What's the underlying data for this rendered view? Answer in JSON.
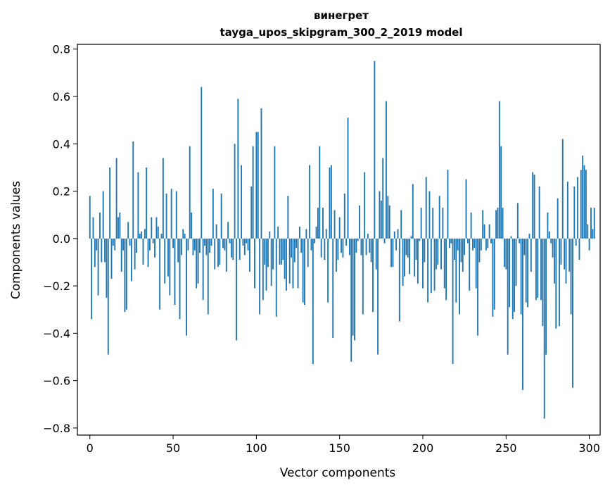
{
  "chart_data": {
    "type": "bar",
    "title_line1": "винегрет",
    "title_line2": "tayga_upos_skipgram_300_2_2019 model",
    "xlabel": "Vector components",
    "ylabel": "Components values",
    "xlim": [
      -7.5,
      306.5
    ],
    "ylim": [
      -0.83,
      0.82
    ],
    "xticks": [
      0,
      50,
      100,
      150,
      200,
      250,
      300
    ],
    "xtick_labels": [
      "0",
      "50",
      "100",
      "150",
      "200",
      "250",
      "300"
    ],
    "yticks": [
      -0.8,
      -0.6,
      -0.4,
      -0.2,
      0.0,
      0.2,
      0.4,
      0.6,
      0.8
    ],
    "ytick_labels": [
      "−0.8",
      "−0.6",
      "−0.4",
      "−0.2",
      "0.0",
      "0.2",
      "0.4",
      "0.6",
      "0.8"
    ],
    "bar_color": "#1f77b4",
    "grid": false,
    "values": [
      0.18,
      -0.34,
      0.09,
      -0.12,
      -0.05,
      -0.24,
      0.11,
      -0.1,
      0.2,
      -0.1,
      -0.25,
      -0.49,
      0.3,
      -0.17,
      -0.03,
      -0.05,
      0.34,
      0.09,
      0.11,
      -0.14,
      -0.05,
      -0.31,
      -0.3,
      0.07,
      -0.03,
      -0.18,
      0.41,
      -0.13,
      -0.06,
      0.28,
      0.02,
      0.03,
      -0.11,
      0.04,
      0.3,
      -0.12,
      -0.05,
      0.09,
      -0.02,
      -0.08,
      0.09,
      0.05,
      -0.3,
      0.02,
      0.34,
      -0.19,
      0.19,
      -0.16,
      -0.24,
      0.21,
      -0.04,
      -0.28,
      0.2,
      -0.1,
      -0.34,
      -0.07,
      0.04,
      0.02,
      -0.41,
      -0.05,
      0.39,
      0.11,
      -0.07,
      -0.05,
      -0.21,
      -0.19,
      -0.06,
      0.64,
      -0.26,
      -0.03,
      -0.07,
      -0.32,
      -0.06,
      -0.03,
      0.21,
      -0.13,
      0.06,
      -0.12,
      -0.11,
      0.19,
      -0.04,
      -0.05,
      -0.14,
      0.07,
      -0.02,
      -0.08,
      -0.09,
      0.4,
      -0.43,
      0.59,
      -0.09,
      0.31,
      -0.03,
      -0.07,
      -0.02,
      -0.05,
      -0.14,
      0.22,
      0.39,
      -0.21,
      0.45,
      0.45,
      -0.32,
      0.55,
      -0.26,
      -0.11,
      -0.22,
      -0.12,
      0.03,
      -0.2,
      -0.13,
      0.39,
      -0.33,
      0.05,
      -0.11,
      -0.11,
      -0.09,
      -0.17,
      -0.22,
      0.18,
      -0.19,
      -0.08,
      -0.21,
      -0.1,
      -0.04,
      -0.21,
      0.05,
      -0.06,
      -0.27,
      -0.28,
      0.04,
      -0.12,
      0.31,
      -0.05,
      -0.53,
      -0.02,
      0.05,
      0.13,
      0.39,
      -0.08,
      0.13,
      -0.09,
      0.04,
      -0.27,
      0.3,
      0.31,
      -0.42,
      0.12,
      -0.14,
      -0.09,
      0.09,
      -0.06,
      -0.08,
      0.19,
      -0.03,
      0.51,
      -0.07,
      -0.52,
      -0.41,
      -0.43,
      -0.06,
      -0.01,
      0.14,
      -0.07,
      -0.32,
      0.28,
      -0.07,
      0.02,
      -0.06,
      -0.1,
      -0.31,
      0.75,
      -0.13,
      -0.49,
      0.2,
      0.16,
      0.34,
      -0.02,
      0.58,
      0.18,
      0.14,
      -0.12,
      -0.12,
      0.03,
      -0.05,
      0.04,
      -0.35,
      0.12,
      -0.2,
      -0.16,
      -0.07,
      -0.08,
      -0.15,
      0.01,
      0.23,
      -0.16,
      -0.09,
      -0.19,
      -0.01,
      0.13,
      -0.21,
      -0.1,
      0.26,
      -0.27,
      0.2,
      -0.23,
      0.13,
      -0.22,
      -0.13,
      -0.11,
      0.18,
      -0.13,
      0.13,
      -0.21,
      -0.26,
      0.29,
      -0.04,
      -0.02,
      -0.53,
      -0.09,
      -0.27,
      -0.05,
      -0.32,
      -0.1,
      -0.14,
      -0.07,
      0.25,
      -0.02,
      -0.22,
      0.11,
      -0.05,
      -0.04,
      -0.21,
      -0.41,
      -0.1,
      -0.05,
      0.12,
      0.06,
      -0.05,
      -0.04,
      0.06,
      -0.02,
      -0.33,
      -0.3,
      0.12,
      0.13,
      0.58,
      0.39,
      0.13,
      -0.12,
      -0.13,
      -0.49,
      -0.29,
      0.01,
      -0.34,
      -0.31,
      -0.2,
      0.15,
      -0.02,
      -0.32,
      -0.64,
      -0.07,
      -0.27,
      -0.29,
      0.02,
      -0.14,
      0.28,
      0.27,
      -0.26,
      -0.25,
      0.22,
      -0.26,
      -0.37,
      -0.76,
      -0.49,
      0.11,
      0.03,
      -0.02,
      -0.08,
      -0.19,
      -0.38,
      0.17,
      -0.37,
      -0.11,
      0.42,
      -0.13,
      -0.19,
      0.24,
      -0.14,
      -0.32,
      -0.63,
      0.22,
      -0.03,
      0.26,
      -0.09,
      0.29,
      0.35,
      0.31,
      0.29,
      0.06,
      -0.05,
      0.13,
      0.04,
      0.13
    ]
  }
}
